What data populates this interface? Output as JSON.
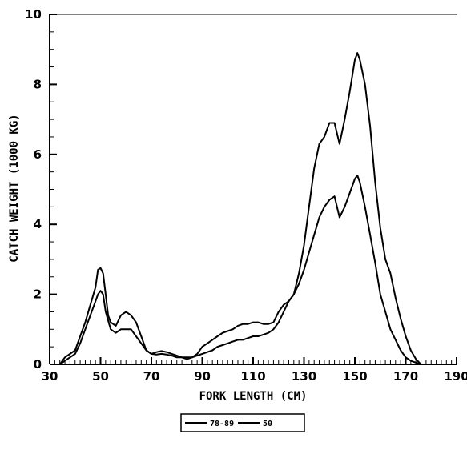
{
  "chart_data": {
    "type": "line",
    "title": "",
    "xlabel": "FORK LENGTH (CM)",
    "ylabel": "CATCH WEIGHT (1000 KG)",
    "xlim": [
      30,
      190
    ],
    "ylim": [
      0,
      10
    ],
    "xticks": [
      30,
      50,
      70,
      90,
      110,
      130,
      150,
      170,
      190
    ],
    "yticks": [
      0,
      2,
      4,
      6,
      8,
      10
    ],
    "grid": false,
    "legend_position": "bottom-center",
    "series": [
      {
        "name": "78-89",
        "color": "#000000",
        "x": [
          30,
          34,
          36,
          40,
          42,
          44,
          46,
          48,
          49,
          50,
          51,
          52,
          54,
          56,
          58,
          60,
          62,
          64,
          66,
          68,
          70,
          72,
          74,
          76,
          78,
          80,
          82,
          84,
          86,
          88,
          90,
          92,
          94,
          96,
          98,
          100,
          102,
          104,
          106,
          108,
          110,
          112,
          114,
          116,
          118,
          120,
          122,
          124,
          126,
          128,
          130,
          132,
          134,
          136,
          138,
          140,
          142,
          144,
          146,
          148,
          150,
          151,
          152,
          154,
          156,
          158,
          160,
          162,
          164,
          166,
          168,
          170,
          172,
          174,
          176,
          178,
          180,
          190
        ],
        "y": [
          0,
          0,
          0.1,
          0.3,
          0.6,
          1.0,
          1.4,
          1.8,
          2.0,
          2.1,
          2.0,
          1.5,
          1.0,
          0.9,
          1.0,
          1.0,
          1.0,
          0.8,
          0.6,
          0.4,
          0.3,
          0.28,
          0.3,
          0.28,
          0.25,
          0.2,
          0.2,
          0.2,
          0.2,
          0.25,
          0.3,
          0.35,
          0.4,
          0.5,
          0.55,
          0.6,
          0.65,
          0.7,
          0.7,
          0.75,
          0.8,
          0.8,
          0.85,
          0.9,
          1.0,
          1.2,
          1.5,
          1.8,
          2.0,
          2.3,
          2.7,
          3.2,
          3.7,
          4.2,
          4.5,
          4.7,
          4.8,
          4.2,
          4.5,
          4.9,
          5.3,
          5.4,
          5.2,
          4.5,
          3.7,
          2.9,
          2.0,
          1.5,
          1.0,
          0.7,
          0.4,
          0.2,
          0.1,
          0.05,
          0,
          0,
          0,
          0
        ]
      },
      {
        "name": "50",
        "color": "#000000",
        "x": [
          30,
          34,
          36,
          40,
          42,
          44,
          46,
          48,
          49,
          50,
          51,
          52,
          53,
          54,
          56,
          58,
          60,
          62,
          64,
          66,
          68,
          70,
          72,
          74,
          76,
          78,
          80,
          82,
          84,
          86,
          88,
          90,
          92,
          94,
          96,
          98,
          100,
          102,
          104,
          106,
          108,
          110,
          112,
          114,
          116,
          118,
          120,
          122,
          124,
          126,
          128,
          130,
          132,
          134,
          136,
          138,
          140,
          142,
          144,
          146,
          148,
          150,
          151,
          152,
          154,
          156,
          158,
          160,
          162,
          164,
          166,
          168,
          170,
          172,
          174,
          176,
          178,
          180,
          190
        ],
        "y": [
          0,
          0,
          0.2,
          0.4,
          0.8,
          1.2,
          1.7,
          2.2,
          2.7,
          2.75,
          2.6,
          2.0,
          1.4,
          1.2,
          1.1,
          1.4,
          1.5,
          1.4,
          1.2,
          0.8,
          0.4,
          0.3,
          0.35,
          0.38,
          0.35,
          0.3,
          0.25,
          0.2,
          0.15,
          0.2,
          0.3,
          0.5,
          0.6,
          0.7,
          0.8,
          0.9,
          0.95,
          1.0,
          1.1,
          1.15,
          1.15,
          1.2,
          1.2,
          1.15,
          1.15,
          1.2,
          1.5,
          1.7,
          1.8,
          2.0,
          2.6,
          3.4,
          4.5,
          5.6,
          6.3,
          6.5,
          6.9,
          6.9,
          6.3,
          7.0,
          7.8,
          8.7,
          8.9,
          8.7,
          8.0,
          6.8,
          5.2,
          3.9,
          3.0,
          2.6,
          1.9,
          1.3,
          0.8,
          0.4,
          0.15,
          0,
          0,
          0,
          0
        ]
      }
    ]
  }
}
